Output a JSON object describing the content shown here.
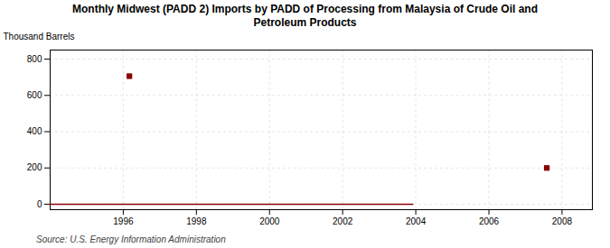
{
  "chart_data": {
    "type": "line",
    "title": "Monthly Midwest (PADD 2) Imports by PADD of Processing from Malaysia of Crude Oil and\nPetroleum Products",
    "ylabel": "Thousand Barrels",
    "source": "Source: U.S. Energy Information Administration",
    "series": [
      {
        "type": "line",
        "x": [
          1994.0,
          2003.917
        ],
        "values": [
          0,
          0
        ],
        "color": "#8b0000"
      },
      {
        "type": "scatter",
        "x": [
          1996.167,
          2007.583
        ],
        "values": [
          706,
          200
        ],
        "color": "#8b0000",
        "marker": "square"
      }
    ],
    "xlim": [
      1994.0,
      2008.83
    ],
    "xticks": [
      1996,
      1998,
      2000,
      2002,
      2004,
      2006,
      2008
    ],
    "ylim": [
      -30,
      850
    ],
    "yticks": [
      0,
      200,
      400,
      600,
      800
    ],
    "grid": true
  }
}
